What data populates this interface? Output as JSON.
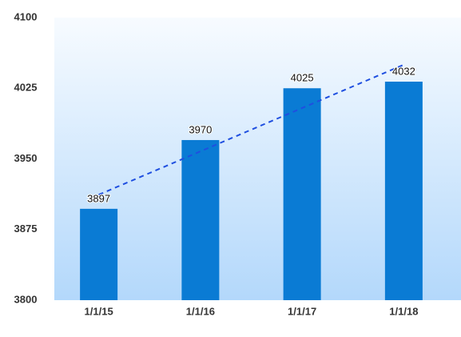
{
  "chart_data": {
    "type": "bar",
    "categories": [
      "1/1/15",
      "1/1/16",
      "1/1/17",
      "1/1/18"
    ],
    "values": [
      3897,
      3970,
      4025,
      4032
    ],
    "color": "#0a7bd4",
    "data_labels": true,
    "trendline": {
      "kind": "linear",
      "color": "#1f4fe0",
      "dashed": true
    },
    "ylim": [
      3800,
      4100
    ],
    "yticks": [
      3800,
      3875,
      3950,
      4025,
      4100
    ],
    "grid": false
  }
}
